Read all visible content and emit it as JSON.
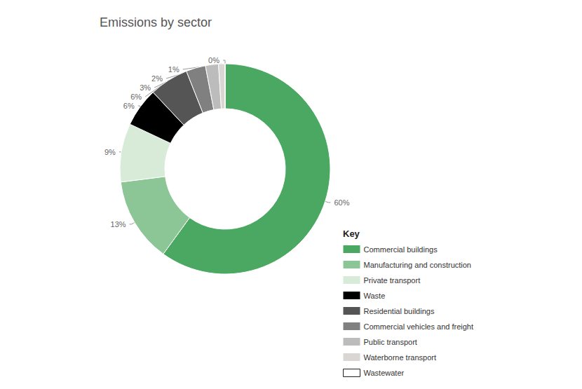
{
  "chart_data": {
    "type": "pie",
    "title": "Emissions by sector",
    "legend_title": "Key",
    "legend": "right",
    "data_labels": true,
    "categories": [
      "Commercial buildings",
      "Manufacturing and construction",
      "Private transport",
      "Waste",
      "Residential buildings",
      "Commercial vehicles and freight",
      "Public transport",
      "Waterborne transport",
      "Wastewater"
    ],
    "values": [
      60,
      13,
      9,
      6,
      6,
      3,
      2,
      1,
      0
    ],
    "value_labels": [
      "60%",
      "13%",
      "9%",
      "6%",
      "6%",
      "3%",
      "2%",
      "1%",
      "0%"
    ],
    "colors": [
      "#4aa862",
      "#8cc697",
      "#d7ebd8",
      "#000000",
      "#555555",
      "#808080",
      "#bcbcbc",
      "#dad6d3",
      "#ffffff"
    ]
  }
}
